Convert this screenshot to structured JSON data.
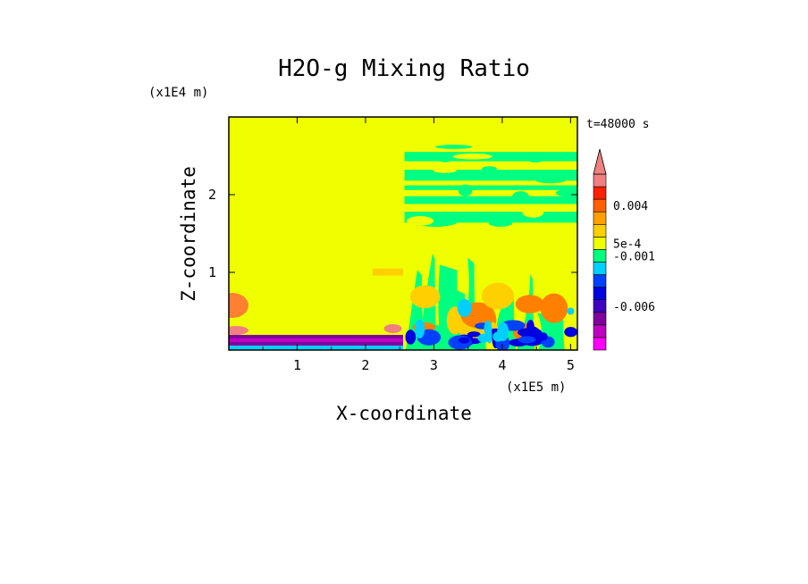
{
  "chart_data": {
    "type": "heatmap",
    "title": "H2O-g Mixing Ratio",
    "xlabel": "X-coordinate",
    "ylabel": "Z-coordinate",
    "x_unit": "(x1E5 m)",
    "y_unit": "(x1E4 m)",
    "time_label": "t=48000 s",
    "xlim": [
      0,
      5.1
    ],
    "ylim": [
      0,
      3.0
    ],
    "x_ticks": [
      "1",
      "2",
      "3",
      "4",
      "5"
    ],
    "y_ticks": [
      "1",
      "2"
    ],
    "colorbar": {
      "labels": [
        "0.004",
        "5e-4",
        "-0.001",
        "-0.006"
      ],
      "colors": [
        "#ff00ff",
        "#c000c0",
        "#8000a0",
        "#4000c0",
        "#0000e0",
        "#0040ff",
        "#00d0ff",
        "#00ff80",
        "#f0ff00",
        "#ffd000",
        "#ffa000",
        "#ff6000",
        "#ff2000",
        "#f08080"
      ],
      "extend": "max"
    },
    "fields": {
      "background": "#f0ff00",
      "moist": "#00ff80",
      "dry": "#0000e0",
      "very_dry": "#8000a0",
      "wet": "#ff8000"
    }
  }
}
